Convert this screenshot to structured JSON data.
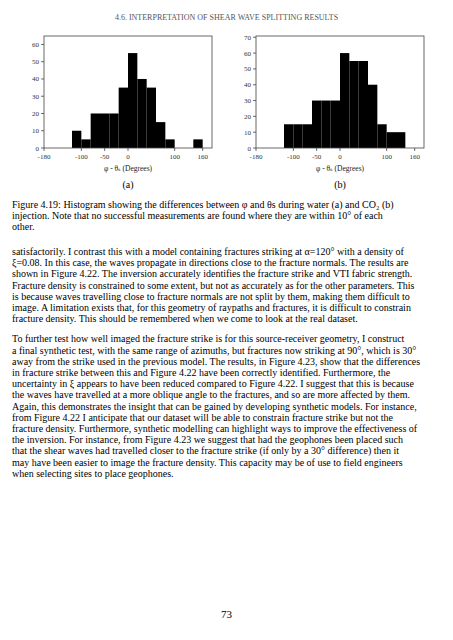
{
  "header": "4.6.   INTERPRETATION OF SHEAR WAVE SPLITTING RESULTS",
  "caption_lines": [
    "Figure 4.19: Histogram showing the differences between φ and θs during water (a) and CO₂ (b)",
    "injection.  Note that no successful measurements are found where they are within 10° of each",
    "other."
  ],
  "body_paragraphs": [
    [
      "satisfactorily. I contrast this with a model containing fractures striking at α=120° with a density of",
      "ξ=0.08. In this case, the waves propagate in directions close to the fracture normals. The results are",
      "shown in Figure 4.22. The inversion accurately identifies the fracture strike and VTI fabric strength.",
      "Fracture density is constrained to some extent, but not as accurately as for the other parameters. This",
      "is because waves travelling close to fracture normals are not split by them, making them difficult to",
      "image. A limitation exists that, for this geometry of raypaths and fractures, it is difficult to constrain",
      "fracture density. This should be remembered when we come to look at the real dataset."
    ],
    [
      "To further test how well imaged the fracture strike is for this source-receiver geometry, I construct",
      "a final synthetic test, with the same range of azimuths, but fractures now striking at 90°, which is 30°",
      "away from the strike used in the previous model. The results, in Figure 4.23, show that the differences",
      "in fracture strike between this and Figure 4.22 have been correctly identified.  Furthermore, the",
      "uncertainty in ξ appears to have been reduced compared to Figure 4.22. I suggest that this is because",
      "the waves have travelled at a more oblique angle to the fractures, and so are more affected by them.",
      "Again, this demonstrates the insight that can be gained by developing synthetic models. For instance,",
      "from Figure 4.22 I anticipate that our dataset will be able to constrain fracture strike but not the",
      "fracture density. Furthermore, synthetic modelling can highlight ways to improve the effectiveness of",
      "the inversion. For instance, from Figure 4.23 we suggest that had the geophones been placed such",
      "that the shear waves had travelled closer to the fracture strike (if only by a 30° difference) then it",
      "may have been easier to image the fracture density. This capacity may be of use to field engineers",
      "when selecting sites to place geophones."
    ]
  ],
  "page_number": "73",
  "chart_data": [
    {
      "type": "histogram",
      "title": "(a)",
      "x_label": "φ - θₛ (Degrees)",
      "bins": [
        -180,
        -160,
        -140,
        -120,
        -100,
        -80,
        -60,
        -40,
        -20,
        0,
        20,
        40,
        60,
        80,
        100,
        120,
        140,
        160,
        180
      ],
      "values": [
        0,
        0,
        0,
        10,
        5,
        20,
        20,
        20,
        35,
        55,
        40,
        35,
        15,
        5,
        0,
        0,
        5,
        0
      ],
      "color": "#000000",
      "xlim": [
        -180,
        180
      ],
      "xticks": [
        -180,
        -100,
        -50,
        0,
        100,
        160
      ],
      "ylim": [
        0,
        64.9
      ],
      "yticks": [
        0,
        10,
        20,
        30,
        40,
        50,
        60
      ],
      "grid": false
    },
    {
      "type": "histogram",
      "title": "(b)",
      "x_label": "φ - θₛ (Degrees)",
      "bins": [
        -180,
        -160,
        -140,
        -120,
        -100,
        -80,
        -60,
        -40,
        -20,
        0,
        20,
        40,
        60,
        80,
        100,
        120,
        140,
        160,
        180
      ],
      "values": [
        0,
        0,
        0,
        15,
        15,
        15,
        30,
        30,
        30,
        60,
        55,
        55,
        40,
        15,
        10,
        10,
        0,
        0
      ],
      "color": "#000000",
      "xlim": [
        -180,
        180
      ],
      "xticks": [
        -180,
        -100,
        -50,
        0,
        100,
        160
      ],
      "ylim": [
        0,
        70.8
      ],
      "yticks": [
        0,
        10,
        20,
        30,
        40,
        50,
        60,
        70
      ],
      "grid": false
    }
  ]
}
